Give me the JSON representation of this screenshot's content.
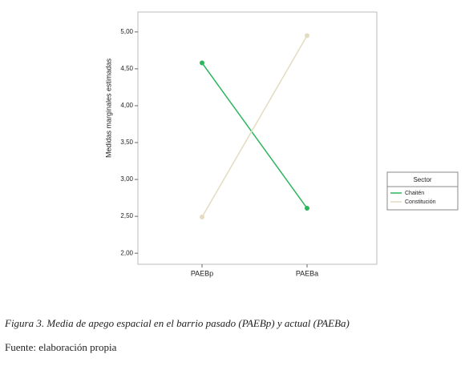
{
  "chart_data": {
    "type": "line",
    "y_label": "Medidas marginales estimadas",
    "categories": [
      "PAEBp",
      "PAEBa"
    ],
    "series": [
      {
        "name": "Chaitén",
        "color": "#2db55d",
        "values": [
          4.58,
          2.61
        ]
      },
      {
        "name": "Constitución",
        "color": "#e3dcc0",
        "values": [
          2.49,
          4.95
        ]
      }
    ],
    "ylim": [
      1.85,
      5.27
    ],
    "yticks": [
      {
        "value": 2,
        "label": "2,00"
      },
      {
        "value": 2.5,
        "label": "2,50"
      },
      {
        "value": 3,
        "label": "3,00"
      },
      {
        "value": 3.5,
        "label": "3,50"
      },
      {
        "value": 4,
        "label": "4,00"
      },
      {
        "value": 4.5,
        "label": "4,50"
      },
      {
        "value": 5,
        "label": "5,00"
      }
    ],
    "legend_title": "Sector",
    "legend_position": "right"
  },
  "caption": "Figura 3. Media de apego espacial en el barrio pasado (PAEBp) y actual (PAEBa)",
  "source": "Fuente: elaboración propia"
}
